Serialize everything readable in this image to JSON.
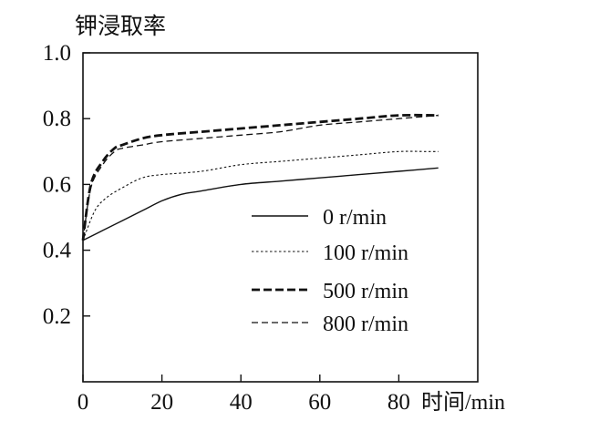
{
  "chart_data": {
    "type": "line",
    "ylabel": "钾浸取率",
    "xlabel": "时间/min",
    "xlim": [
      0,
      100
    ],
    "ylim": [
      0,
      1.0
    ],
    "x_ticks": [
      0,
      20,
      40,
      60,
      80
    ],
    "x_tick_labels": [
      "0",
      "20",
      "40",
      "60",
      "80"
    ],
    "y_ticks": [
      0.2,
      0.4,
      0.6,
      0.8,
      1.0
    ],
    "y_tick_labels": [
      "0.2",
      "0.4",
      "0.6",
      "0.8",
      "1.0"
    ],
    "grid": false,
    "legend": "bottom-right",
    "series": [
      {
        "name": "0 r/min",
        "style": "solid",
        "x": [
          0,
          5,
          10,
          15,
          20,
          25,
          30,
          40,
          50,
          60,
          70,
          80,
          90
        ],
        "values": [
          0.43,
          0.46,
          0.49,
          0.52,
          0.55,
          0.57,
          0.58,
          0.6,
          0.61,
          0.62,
          0.63,
          0.64,
          0.65
        ]
      },
      {
        "name": "100 r/min",
        "style": "dotted",
        "x": [
          0,
          3,
          6,
          10,
          15,
          20,
          30,
          40,
          50,
          60,
          70,
          80,
          87,
          90
        ],
        "values": [
          0.43,
          0.52,
          0.56,
          0.59,
          0.62,
          0.63,
          0.64,
          0.66,
          0.67,
          0.68,
          0.69,
          0.7,
          0.7,
          0.7
        ]
      },
      {
        "name": "500 r/min",
        "style": "bold-dashed",
        "x": [
          0,
          2,
          5,
          8,
          10,
          15,
          20,
          30,
          40,
          50,
          60,
          70,
          80,
          90
        ],
        "values": [
          0.43,
          0.6,
          0.67,
          0.71,
          0.72,
          0.74,
          0.75,
          0.76,
          0.77,
          0.78,
          0.79,
          0.8,
          0.81,
          0.81
        ]
      },
      {
        "name": "800 r/min",
        "style": "dashed",
        "x": [
          0,
          2,
          5,
          8,
          10,
          15,
          20,
          30,
          40,
          50,
          60,
          70,
          80,
          90
        ],
        "values": [
          0.43,
          0.59,
          0.66,
          0.7,
          0.71,
          0.72,
          0.73,
          0.74,
          0.75,
          0.76,
          0.78,
          0.79,
          0.8,
          0.81
        ]
      }
    ]
  }
}
